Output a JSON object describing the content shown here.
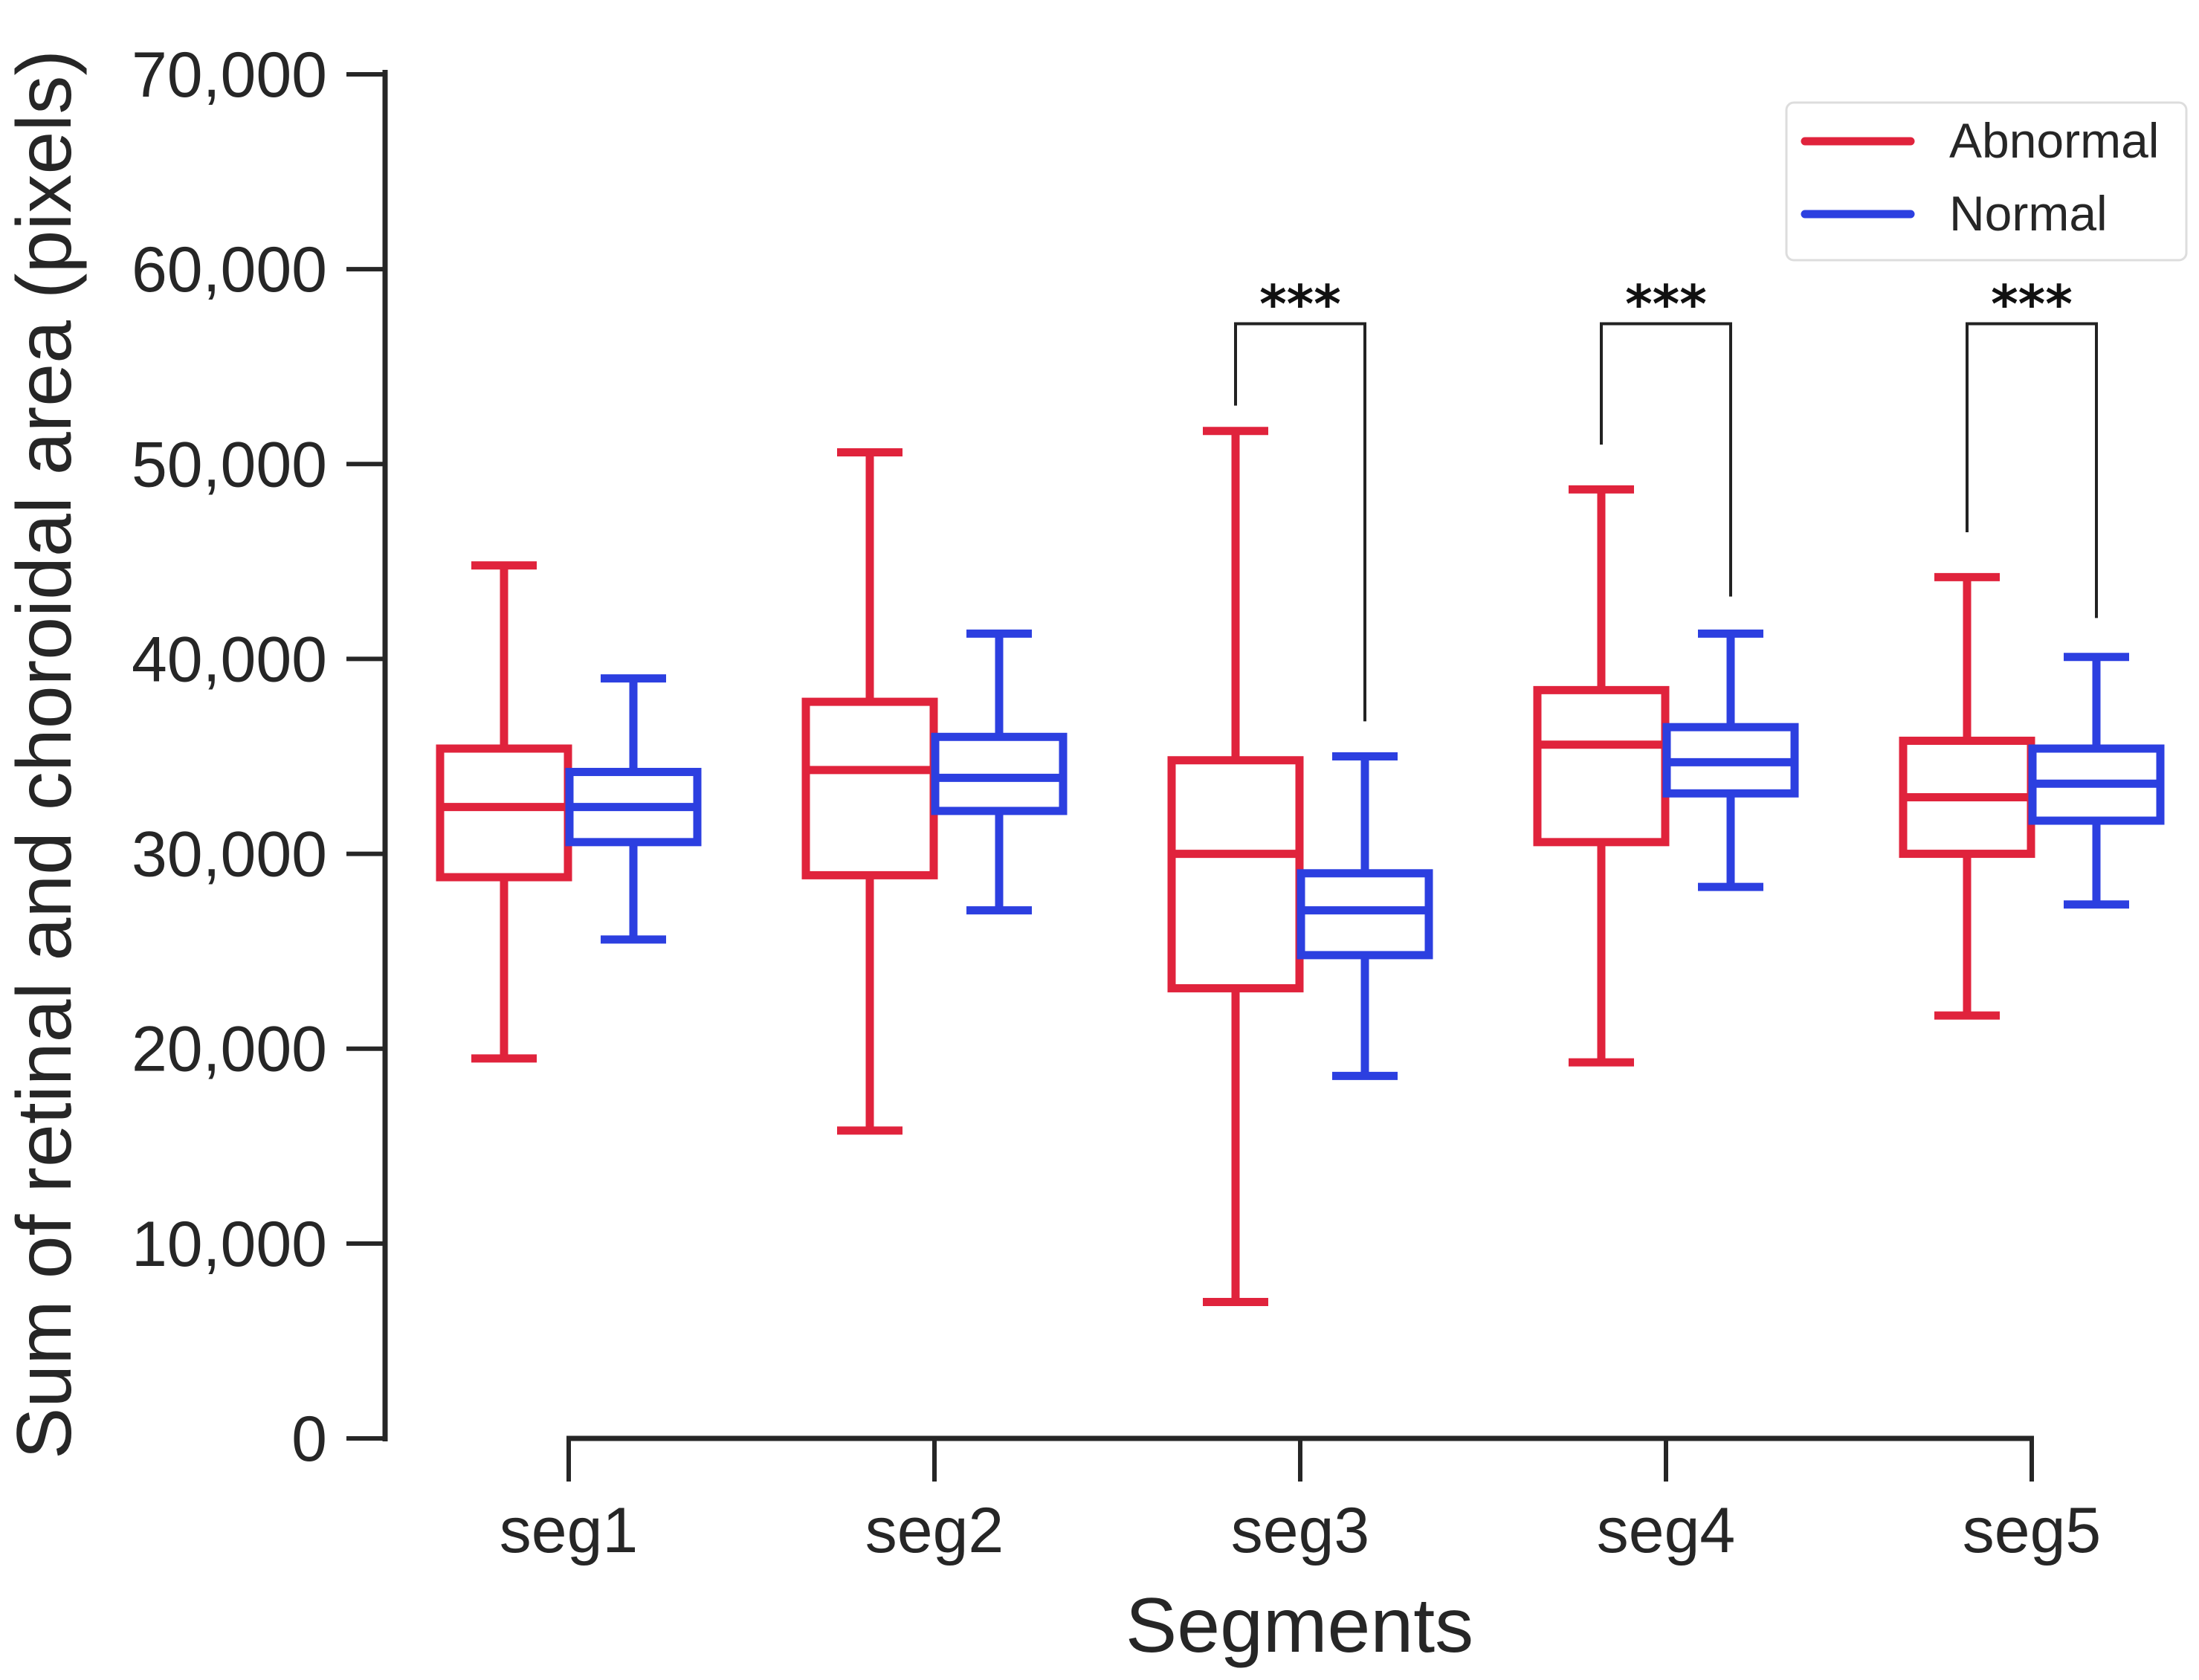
{
  "chart_data": {
    "type": "box",
    "title": "",
    "xlabel": "Segments",
    "ylabel": "Sum of retinal and choroidal area (pixels)",
    "ylim": [
      0,
      70000
    ],
    "yticks": [
      0,
      10000,
      20000,
      30000,
      40000,
      50000,
      60000,
      70000
    ],
    "ytick_labels": [
      "0",
      "10,000",
      "20,000",
      "30,000",
      "40,000",
      "50,000",
      "60,000",
      "70,000"
    ],
    "categories": [
      "seg1",
      "seg2",
      "seg3",
      "seg4",
      "seg5"
    ],
    "legend_position": "top-right",
    "series": [
      {
        "name": "Abnormal",
        "color": "#e0233c",
        "boxes": [
          {
            "whisker_low": 19500,
            "q1": 28800,
            "median": 32400,
            "q3": 35400,
            "whisker_high": 44800
          },
          {
            "whisker_low": 15800,
            "q1": 28900,
            "median": 34300,
            "q3": 37800,
            "whisker_high": 50600
          },
          {
            "whisker_low": 7000,
            "q1": 23100,
            "median": 30000,
            "q3": 34800,
            "whisker_high": 51700
          },
          {
            "whisker_low": 19300,
            "q1": 30600,
            "median": 35600,
            "q3": 38400,
            "whisker_high": 48700
          },
          {
            "whisker_low": 21700,
            "q1": 30000,
            "median": 32900,
            "q3": 35800,
            "whisker_high": 44200
          }
        ]
      },
      {
        "name": "Normal",
        "color": "#2c3fe0",
        "boxes": [
          {
            "whisker_low": 25600,
            "q1": 30600,
            "median": 32400,
            "q3": 34200,
            "whisker_high": 39000
          },
          {
            "whisker_low": 27100,
            "q1": 32200,
            "median": 33900,
            "q3": 36000,
            "whisker_high": 41300
          },
          {
            "whisker_low": 18600,
            "q1": 24800,
            "median": 27100,
            "q3": 29000,
            "whisker_high": 35000
          },
          {
            "whisker_low": 28300,
            "q1": 33100,
            "median": 34700,
            "q3": 36500,
            "whisker_high": 41300
          },
          {
            "whisker_low": 27400,
            "q1": 31700,
            "median": 33600,
            "q3": 35400,
            "whisker_high": 40100
          }
        ]
      }
    ],
    "significance": [
      {
        "category": "seg3",
        "label": "***",
        "bracket_top": 57200,
        "left_bottom": 53000,
        "right_bottom": 36800
      },
      {
        "category": "seg4",
        "label": "***",
        "bracket_top": 57200,
        "left_bottom": 51000,
        "right_bottom": 43200
      },
      {
        "category": "seg5",
        "label": "***",
        "bracket_top": 57200,
        "left_bottom": 46500,
        "right_bottom": 42100
      }
    ]
  }
}
